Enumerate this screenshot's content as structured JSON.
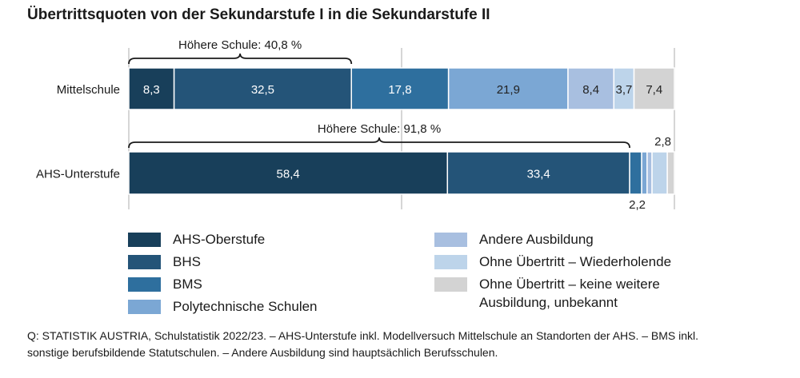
{
  "title": "Übertrittsquoten von der Sekundarstufe I in die Sekundarstufe II",
  "chart_data": {
    "type": "bar",
    "orientation": "horizontal",
    "stacked": true,
    "xlim": [
      0,
      100
    ],
    "grid": true,
    "categories": [
      "Mittelschule",
      "AHS-Unterstufe"
    ],
    "series": [
      {
        "name": "AHS-Oberstufe",
        "color": "#183f5a",
        "values": [
          8.3,
          58.4
        ],
        "labels": [
          "8,3",
          "58,4"
        ]
      },
      {
        "name": "BHS",
        "color": "#245478",
        "values": [
          32.5,
          33.4
        ],
        "labels": [
          "32,5",
          "33,4"
        ]
      },
      {
        "name": "BMS",
        "color": "#2e6f9e",
        "values": [
          17.8,
          2.2
        ],
        "labels": [
          "17,8",
          "2,2"
        ]
      },
      {
        "name": "Polytechnische Schulen",
        "color": "#7ba7d4",
        "values": [
          21.9,
          1.0
        ],
        "labels": [
          "21,9",
          ""
        ]
      },
      {
        "name": "Andere Ausbildung",
        "color": "#a8bfe0",
        "values": [
          8.4,
          0.9
        ],
        "labels": [
          "8,4",
          ""
        ]
      },
      {
        "name": "Ohne Übertritt – Wiederholende",
        "color": "#bdd4ea",
        "values": [
          3.7,
          2.8
        ],
        "labels": [
          "3,7",
          "2,8"
        ]
      },
      {
        "name": "Ohne Übertritt – keine weitere Ausbildung, unbekannt",
        "color": "#d3d3d3",
        "values": [
          7.4,
          1.3
        ],
        "labels": [
          "7,4",
          ""
        ]
      }
    ],
    "annotations": [
      {
        "text": "Höhere Schule: 40,8 %",
        "category": "Mittelschule",
        "from": 0,
        "to": 40.8
      },
      {
        "text": "Höhere Schule: 91,8 %",
        "category": "AHS-Unterstufe",
        "from": 0,
        "to": 91.8
      }
    ]
  },
  "legend": {
    "left": [
      {
        "label": "AHS-Oberstufe",
        "color": "#183f5a"
      },
      {
        "label": "BHS",
        "color": "#245478"
      },
      {
        "label": "BMS",
        "color": "#2e6f9e"
      },
      {
        "label": "Polytechnische Schulen",
        "color": "#7ba7d4"
      }
    ],
    "right": [
      {
        "label": "Andere Ausbildung",
        "color": "#a8bfe0"
      },
      {
        "label": "Ohne Übertritt – Wiederholende",
        "color": "#bdd4ea"
      },
      {
        "label": "Ohne Übertritt – keine weitere",
        "label2": "Ausbildung, unbekannt",
        "color": "#d3d3d3"
      }
    ]
  },
  "source": {
    "line1": "Q: STATISTIK AUSTRIA, Schulstatistik 2022/23. – AHS-Unterstufe inkl. Modellversuch Mittelschule an Standorten der AHS. – BMS inkl.",
    "line2": "sonstige berufsbildende Statutschulen. – Andere Ausbildung sind hauptsächlich Berufsschulen."
  }
}
